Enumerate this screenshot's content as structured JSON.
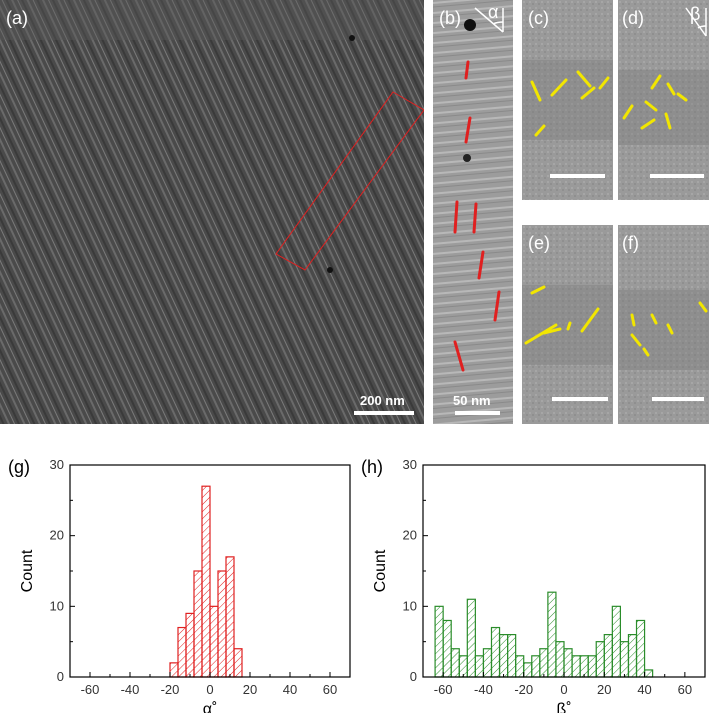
{
  "micrographs": {
    "a": {
      "label": "(a)",
      "scale_text": "200 nm"
    },
    "b": {
      "label": "(b)",
      "scale_text": "50 nm",
      "angle_symbol": "α"
    },
    "c": {
      "label": "(c)"
    },
    "d": {
      "label": "(d)",
      "angle_symbol": "β"
    },
    "e": {
      "label": "(e)"
    },
    "f": {
      "label": "(f)"
    }
  },
  "colors": {
    "alpha_hist": "#e02020",
    "beta_hist": "#2a8c2a",
    "overlay_red": "#e02020",
    "overlay_yellow": "#f2e600"
  },
  "chart_data": [
    {
      "panel": "(g)",
      "type": "bar",
      "xlabel": "α˚",
      "ylabel": "Count",
      "xlim": [
        -70,
        70
      ],
      "ylim": [
        0,
        30
      ],
      "xticks": [
        -60,
        -40,
        -20,
        0,
        20,
        40,
        60
      ],
      "yticks": [
        0,
        10,
        20,
        30
      ],
      "bin_width": 4,
      "x": [
        -18,
        -14,
        -10,
        -6,
        -2,
        2,
        6,
        10,
        14
      ],
      "values": [
        2,
        7,
        9,
        15,
        27,
        10,
        15,
        17,
        4
      ]
    },
    {
      "panel": "(h)",
      "type": "bar",
      "xlabel": "ß˚",
      "ylabel": "Count",
      "xlim": [
        -70,
        70
      ],
      "ylim": [
        0,
        30
      ],
      "xticks": [
        -60,
        -40,
        -20,
        0,
        20,
        40,
        60
      ],
      "yticks": [
        0,
        10,
        20,
        30
      ],
      "bin_width": 4,
      "x": [
        -62,
        -58,
        -54,
        -50,
        -46,
        -42,
        -38,
        -34,
        -30,
        -26,
        -22,
        -18,
        -14,
        -10,
        -6,
        -2,
        2,
        6,
        10,
        14,
        18,
        22,
        26,
        30,
        34,
        38,
        42,
        46,
        50,
        54,
        58
      ],
      "values": [
        10,
        8,
        4,
        3,
        11,
        3,
        4,
        7,
        6,
        6,
        3,
        2,
        3,
        4,
        12,
        5,
        4,
        3,
        3,
        3,
        5,
        6,
        10,
        5,
        6,
        8,
        1,
        0,
        0,
        0,
        0
      ]
    }
  ]
}
